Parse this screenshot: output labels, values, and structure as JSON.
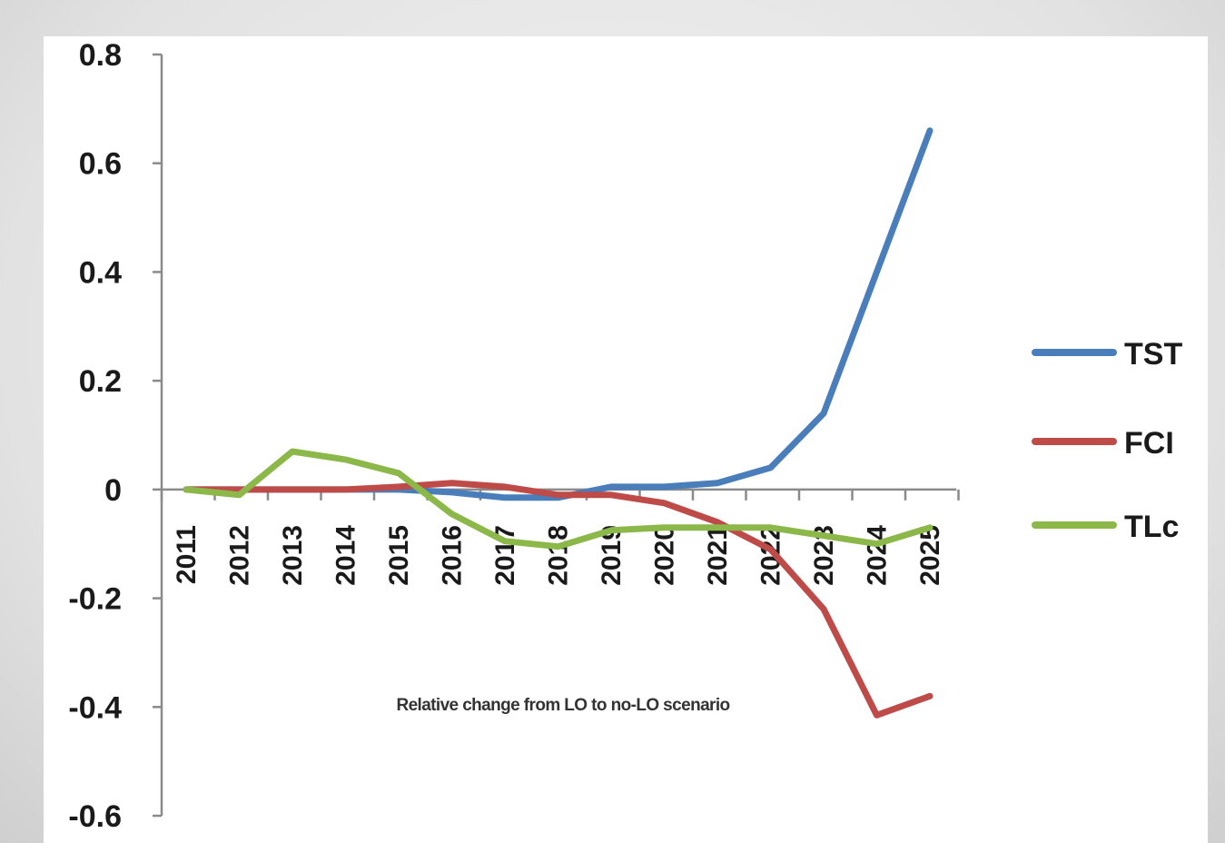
{
  "chart_data": {
    "type": "line",
    "title": "",
    "xlabel": "",
    "ylabel": "",
    "categories": [
      "2011",
      "2012",
      "2013",
      "2014",
      "2015",
      "2016",
      "2017",
      "2018",
      "2019",
      "2020",
      "2021",
      "2022",
      "2023",
      "2024",
      "2025"
    ],
    "ylim": [
      -0.6,
      0.8
    ],
    "yticks": [
      0.8,
      0.6,
      0.4,
      0.2,
      0,
      -0.2,
      -0.4,
      -0.6
    ],
    "ytick_labels": [
      "0.8",
      "0.6",
      "0.4",
      "0.2",
      "0",
      "-0.2",
      "-0.4",
      "-0.6"
    ],
    "grid": false,
    "legend_position": "right",
    "annotation": "Relative change from LO to no-LO scenario",
    "series": [
      {
        "name": "TST",
        "color": "#4a7ebb",
        "values": [
          0,
          0,
          0,
          0,
          0,
          -0.005,
          -0.015,
          -0.015,
          0.005,
          0.005,
          0.012,
          0.04,
          0.14,
          0.4,
          0.66
        ]
      },
      {
        "name": "FCI",
        "color": "#be4b48",
        "values": [
          0,
          0,
          0,
          0,
          0.005,
          0.012,
          0.005,
          -0.01,
          -0.01,
          -0.025,
          -0.06,
          -0.11,
          -0.22,
          -0.415,
          -0.38
        ]
      },
      {
        "name": "TLc",
        "color": "#8cb84a",
        "values": [
          0,
          -0.01,
          0.07,
          0.055,
          0.03,
          -0.045,
          -0.095,
          -0.105,
          -0.075,
          -0.07,
          -0.07,
          -0.07,
          -0.085,
          -0.1,
          -0.07
        ]
      }
    ]
  }
}
